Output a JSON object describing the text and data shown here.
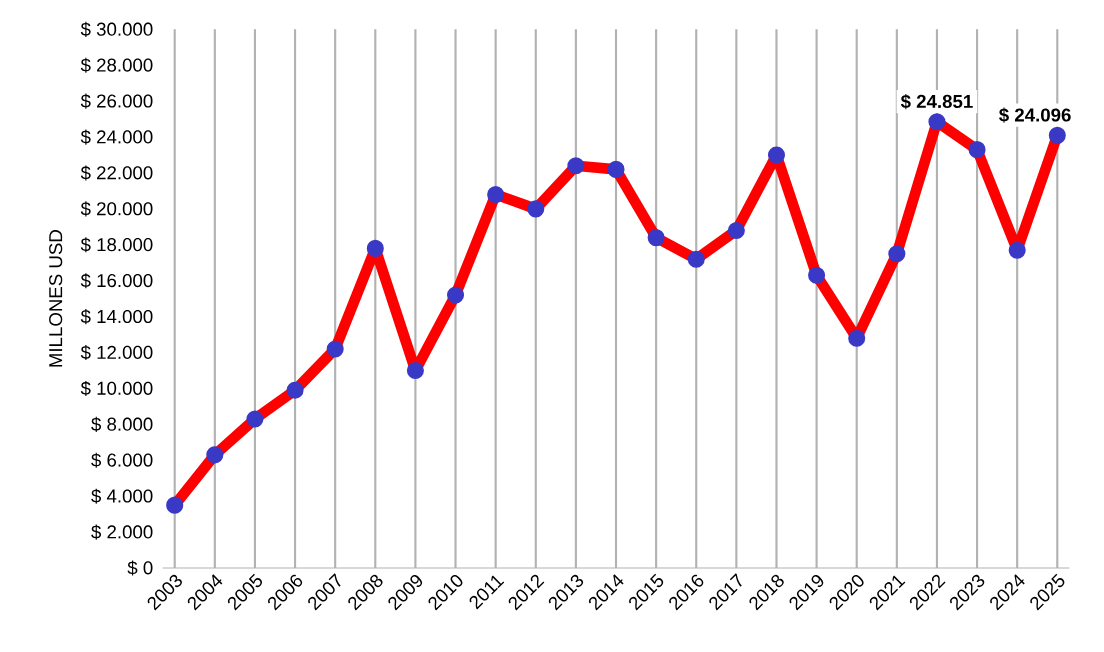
{
  "chart_data": {
    "type": "line",
    "ylabel": "MILLONES  USD",
    "categories": [
      "2003",
      "2004",
      "2005",
      "2006",
      "2007",
      "2008",
      "2009",
      "2010",
      "2011",
      "2012",
      "2013",
      "2014",
      "2015",
      "2016",
      "2017",
      "2018",
      "2019",
      "2020",
      "2021",
      "2022",
      "2023",
      "2024",
      "2025"
    ],
    "series": [
      {
        "color": "#ff0000",
        "values": [
          3500,
          6300,
          8300,
          9900,
          12200,
          17800,
          11000,
          15200,
          20800,
          20000,
          22400,
          22200,
          18400,
          17200,
          18800,
          23000,
          16300,
          12800,
          17500,
          24851,
          23300,
          17700,
          24096
        ],
        "value_labels": [
          null,
          null,
          null,
          null,
          null,
          null,
          null,
          null,
          null,
          null,
          null,
          null,
          null,
          null,
          null,
          null,
          null,
          null,
          null,
          "$ 24.851",
          null,
          null,
          "$ 24.096"
        ]
      }
    ],
    "ylim": [
      0,
      30000
    ],
    "yticks": [
      {
        "value": 0,
        "label": "$ 0"
      },
      {
        "value": 2000,
        "label": "$ 2.000"
      },
      {
        "value": 4000,
        "label": "$ 4.000"
      },
      {
        "value": 6000,
        "label": "$ 6.000"
      },
      {
        "value": 8000,
        "label": "$ 8.000"
      },
      {
        "value": 10000,
        "label": "$ 10.000"
      },
      {
        "value": 12000,
        "label": "$ 12.000"
      },
      {
        "value": 14000,
        "label": "$ 14.000"
      },
      {
        "value": 16000,
        "label": "$ 16.000"
      },
      {
        "value": 18000,
        "label": "$ 18.000"
      },
      {
        "value": 20000,
        "label": "$ 20.000"
      },
      {
        "value": 22000,
        "label": "$ 22.000"
      },
      {
        "value": 24000,
        "label": "$ 24.000"
      },
      {
        "value": 26000,
        "label": "$ 26.000"
      },
      {
        "value": 28000,
        "label": "$ 28.000"
      },
      {
        "value": 30000,
        "label": "$ 30.000"
      }
    ],
    "grid": "x",
    "marker": "circle",
    "line_style": "solid"
  }
}
